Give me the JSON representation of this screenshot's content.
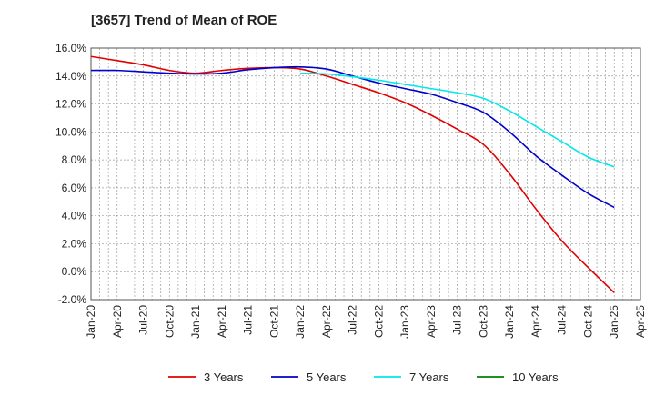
{
  "chart_data": {
    "type": "line",
    "title": "[3657]  Trend of Mean of ROE",
    "xlabel": "",
    "ylabel": "",
    "ylim": [
      -2.0,
      16.0
    ],
    "yticks": [
      "16.0%",
      "14.0%",
      "12.0%",
      "10.0%",
      "8.0%",
      "6.0%",
      "4.0%",
      "2.0%",
      "0.0%",
      "-2.0%"
    ],
    "ytick_values": [
      16,
      14,
      12,
      10,
      8,
      6,
      4,
      2,
      0,
      -2
    ],
    "x_tick_labels": [
      "Jan-20",
      "Apr-20",
      "Jul-20",
      "Oct-20",
      "Jan-21",
      "Apr-21",
      "Jul-21",
      "Oct-21",
      "Jan-22",
      "Apr-22",
      "Jul-22",
      "Oct-22",
      "Jan-23",
      "Apr-23",
      "Jul-23",
      "Oct-23",
      "Jan-24",
      "Apr-24",
      "Jul-24",
      "Oct-24",
      "Jan-25",
      "Apr-25"
    ],
    "grid": true,
    "legend_position": "bottom",
    "series": [
      {
        "name": "3 Years",
        "color": "#e00000",
        "start_index": 0,
        "values": [
          15.4,
          15.1,
          14.8,
          14.4,
          14.2,
          14.4,
          14.55,
          14.6,
          14.5,
          14.0,
          13.4,
          12.8,
          12.1,
          11.2,
          10.2,
          9.1,
          7.0,
          4.5,
          2.2,
          0.3,
          -1.5
        ]
      },
      {
        "name": "5 Years",
        "color": "#0000cc",
        "start_index": 0,
        "values": [
          14.4,
          14.4,
          14.3,
          14.2,
          14.15,
          14.2,
          14.45,
          14.6,
          14.65,
          14.5,
          14.0,
          13.5,
          13.1,
          12.7,
          12.1,
          11.4,
          10.0,
          8.3,
          6.9,
          5.6,
          4.6
        ]
      },
      {
        "name": "7 Years",
        "color": "#00e8e8",
        "start_index": 8,
        "values": [
          14.2,
          14.15,
          13.95,
          13.7,
          13.4,
          13.1,
          12.8,
          12.4,
          11.5,
          10.4,
          9.3,
          8.2,
          7.5
        ]
      },
      {
        "name": "10 Years",
        "color": "#008000",
        "start_index": 0,
        "values": []
      }
    ]
  }
}
